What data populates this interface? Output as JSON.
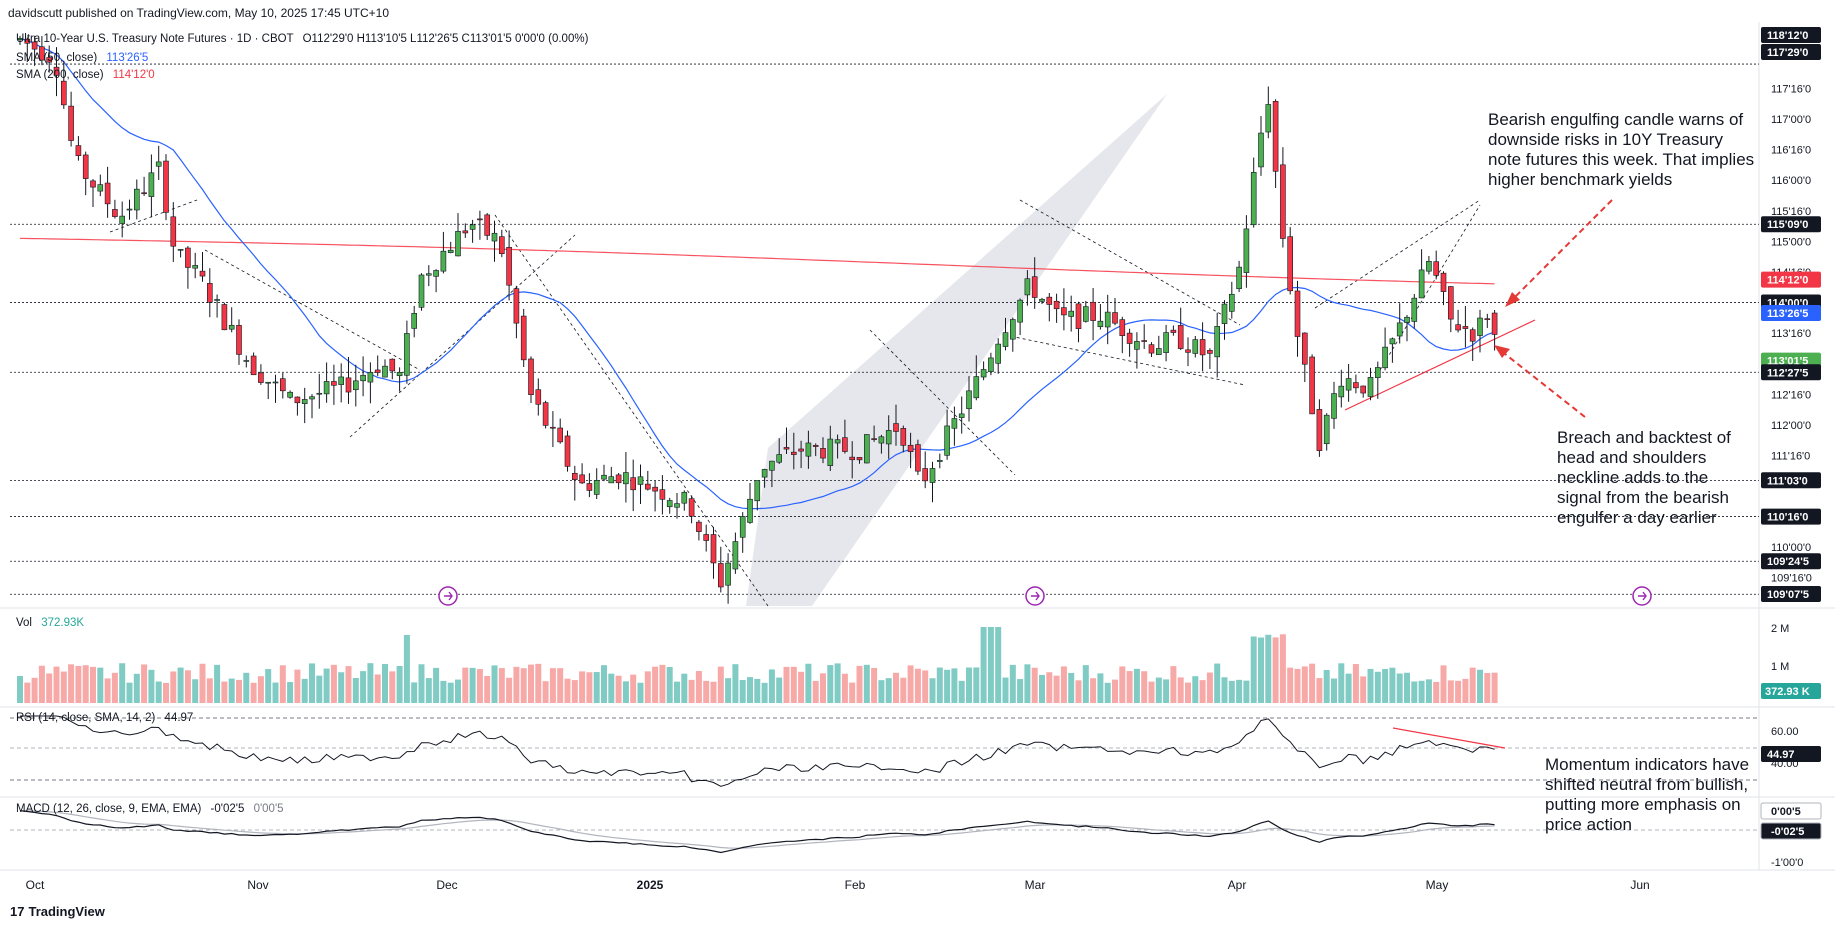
{
  "header": {
    "publisher": "davidscutt published on TradingView.com, May 10, 2025 17:45 UTC+10"
  },
  "main_legend": {
    "title": "Ultra 10-Year U.S. Treasury Note Futures · 1D · CBOT",
    "ohlc": "O112'29'0 H113'10'5 L112'26'5 C113'01'5 0'00'0 (0.00%)",
    "sma_fast_label": "SMA (50, close)",
    "sma_fast_value": "113'26'5",
    "sma_slow_label": "SMA (200, close)",
    "sma_slow_value": "114'12'0"
  },
  "colors": {
    "up": "#26a69a",
    "down": "#ef5350",
    "up_candle": "#4caf50",
    "down_candle": "#f23645",
    "sma50": "#2962ff",
    "sma200": "#f7525f",
    "vol_up": "#80cbc4",
    "vol_down": "#f7a9a7",
    "channel": "#d1d4dc",
    "annotation_arrow": "#e53935",
    "event_icon": "#9c27b0",
    "axis_text": "#131722"
  },
  "annotations": {
    "bearish": [
      "Bearish engulfing candle warns of",
      "downside risks in 10Y Treasury",
      "note futures this week. That implies",
      "higher benchmark yields"
    ],
    "breach": [
      "Breach and backtest of",
      "head and shoulders",
      "neckline adds to the",
      "signal from the bearish",
      "engulfer a day earlier"
    ],
    "momentum": [
      "Momentum indicators have",
      "shifted neutral from bullish,",
      "putting more emphasis on",
      "price action"
    ]
  },
  "volume_pane": {
    "label": "Vol",
    "value": "372.93K",
    "ticks": [
      "2 M",
      "1 M"
    ],
    "badge": "372.93 K"
  },
  "rsi_pane": {
    "label": "RSI (14, close, SMA, 14, 2)",
    "value": "44.97",
    "ticks": [
      "60.00",
      "40.00"
    ],
    "badge": "44.97"
  },
  "macd_pane": {
    "label": "MACD (12, 26, close, 9, EMA, EMA)",
    "value": "-0'02'5",
    "value2": "0'00'5",
    "ticks": [
      "-1'00'0"
    ],
    "badge1": "0'00'5",
    "badge2": "-0'02'5"
  },
  "brand": "TradingView",
  "chart_data": {
    "type": "candlestick",
    "title": "Ultra 10-Year U.S. Treasury Note Futures",
    "interval": "1D",
    "price_axis_ticks": [
      "117'16'0",
      "117'00'0",
      "116'16'0",
      "116'00'0",
      "115'16'0",
      "115'00'0",
      "114'16'0",
      "113'16'0",
      "112'16'0",
      "112'00'0",
      "111'16'0",
      "110'00'0",
      "109'16'0"
    ],
    "price_axis_badges": [
      {
        "text": "118'12'0",
        "style": "dark"
      },
      {
        "text": "117'29'0",
        "style": "dark"
      },
      {
        "text": "115'09'0",
        "style": "dark"
      },
      {
        "text": "114'12'0",
        "style": "red"
      },
      {
        "text": "114'00'0",
        "style": "dark"
      },
      {
        "text": "113'26'5",
        "style": "blue"
      },
      {
        "text": "113'01'5",
        "style": "green"
      },
      {
        "text": "112'27'5",
        "style": "dark"
      },
      {
        "text": "111'03'0",
        "style": "dark"
      },
      {
        "text": "110'16'0",
        "style": "dark"
      },
      {
        "text": "109'24'5",
        "style": "dark"
      },
      {
        "text": "109'07'5",
        "style": "dark"
      }
    ],
    "x_axis_labels": [
      "Oct",
      "Nov",
      "Dec",
      "2025",
      "Feb",
      "Mar",
      "Apr",
      "May",
      "Jun"
    ],
    "horizontal_levels": [
      117.9,
      115.28,
      114.0,
      112.86,
      111.09,
      110.5,
      109.77,
      109.23
    ],
    "sma50_value": 113.83,
    "sma200_value": 114.38,
    "last_close": 113.05
  }
}
